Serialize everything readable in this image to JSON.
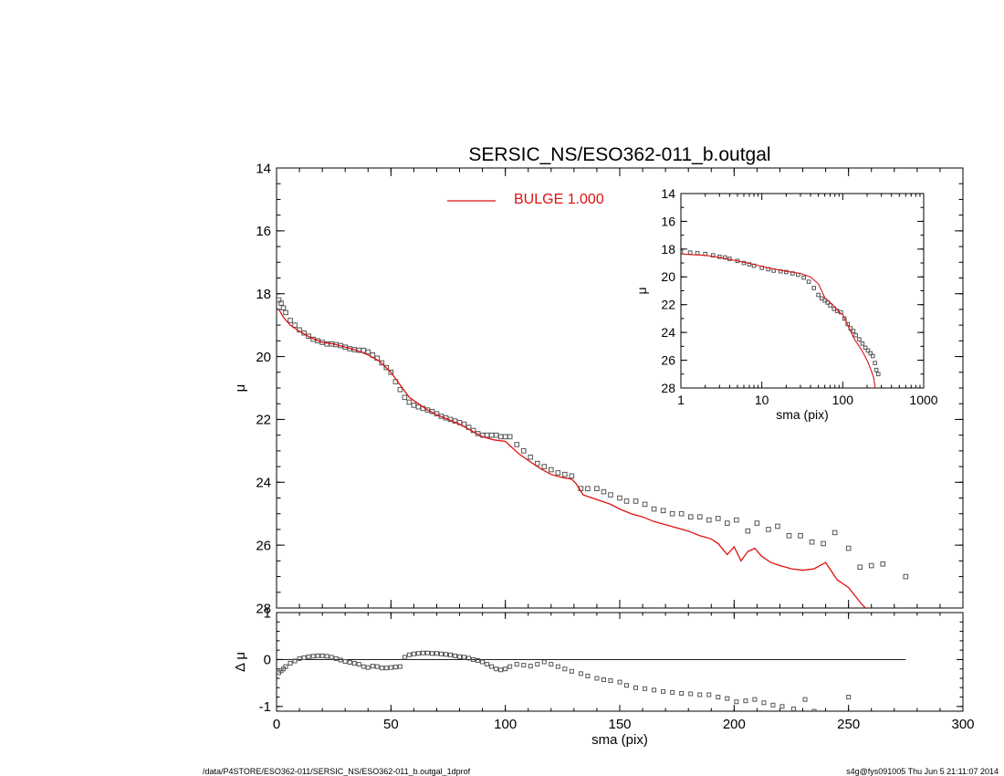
{
  "title": "SERSIC_NS/ESO362-011_b.outgal",
  "footer": {
    "left": "/data/P4STORE/ESO362-011/SERSIC_NS/ESO362-011_b.outgal_1dprof",
    "right": "s4g@fys091005  Thu Jun  5 21:11:07 2014"
  },
  "colors": {
    "model": "#dd1111",
    "data": "#555555",
    "axes": "#000000"
  },
  "chart_data": [
    {
      "type": "scatter",
      "panel": "main",
      "xlabel": "",
      "ylabel": "μ",
      "xlim": [
        0,
        300
      ],
      "ylim": [
        28,
        14
      ],
      "y_inverted": true,
      "yticks": [
        14,
        16,
        18,
        20,
        22,
        24,
        26,
        28
      ],
      "legend": {
        "label": "BULGE  1.000",
        "placement": "top-center"
      },
      "series": [
        {
          "marker": "open-square",
          "x": [
            1,
            2,
            3,
            4,
            6,
            8,
            10,
            12,
            14,
            16,
            18,
            20,
            22,
            24,
            26,
            28,
            30,
            32,
            34,
            36,
            38,
            40,
            42,
            44,
            46,
            48,
            50,
            52,
            54,
            56,
            58,
            60,
            62,
            64,
            66,
            68,
            70,
            72,
            74,
            76,
            78,
            80,
            82,
            84,
            86,
            88,
            90,
            92,
            94,
            96,
            98,
            100,
            102,
            105,
            108,
            111,
            114,
            117,
            120,
            123,
            126,
            129,
            133,
            136,
            140,
            143,
            146,
            150,
            153,
            157,
            161,
            165,
            169,
            173,
            177,
            181,
            185,
            189,
            193,
            197,
            201,
            206,
            210,
            215,
            219,
            224,
            229,
            234,
            239,
            244,
            250,
            255,
            260,
            265,
            275
          ],
          "y": [
            18.2,
            18.3,
            18.45,
            18.6,
            18.85,
            19.0,
            19.15,
            19.25,
            19.35,
            19.45,
            19.5,
            19.55,
            19.6,
            19.6,
            19.62,
            19.65,
            19.7,
            19.75,
            19.78,
            19.8,
            19.8,
            19.85,
            19.95,
            20.05,
            20.2,
            20.35,
            20.5,
            20.8,
            21.05,
            21.3,
            21.45,
            21.55,
            21.6,
            21.65,
            21.7,
            21.75,
            21.82,
            21.9,
            21.95,
            22.0,
            22.05,
            22.1,
            22.15,
            22.25,
            22.35,
            22.45,
            22.5,
            22.5,
            22.5,
            22.5,
            22.55,
            22.55,
            22.55,
            22.8,
            23.0,
            23.2,
            23.4,
            23.5,
            23.6,
            23.7,
            23.75,
            23.8,
            24.2,
            24.2,
            24.2,
            24.3,
            24.4,
            24.5,
            24.6,
            24.6,
            24.7,
            24.85,
            24.9,
            25.0,
            25.0,
            25.1,
            25.1,
            25.2,
            25.15,
            25.3,
            25.2,
            25.55,
            25.3,
            25.5,
            25.4,
            25.7,
            25.7,
            25.9,
            25.95,
            25.6,
            26.1,
            26.7,
            26.65,
            26.6,
            27.0
          ]
        },
        {
          "name": "BULGE  1.000",
          "line": true,
          "x": [
            1,
            3,
            6,
            10,
            15,
            20,
            25,
            30,
            35,
            40,
            45,
            50,
            54,
            58,
            62,
            66,
            70,
            75,
            80,
            85,
            90,
            95,
            100,
            103,
            106,
            110,
            115,
            120,
            125,
            129,
            131,
            134,
            138,
            142,
            146,
            150,
            155,
            160,
            165,
            170,
            175,
            180,
            185,
            190,
            193,
            197,
            200,
            203,
            206,
            209,
            212,
            216,
            220,
            225,
            230,
            235,
            240,
            245,
            250,
            256,
            262
          ],
          "y": [
            18.5,
            18.75,
            19.0,
            19.2,
            19.4,
            19.55,
            19.6,
            19.7,
            19.8,
            19.95,
            20.15,
            20.5,
            20.9,
            21.3,
            21.5,
            21.7,
            21.85,
            22.0,
            22.15,
            22.35,
            22.55,
            22.65,
            22.7,
            22.9,
            23.1,
            23.3,
            23.55,
            23.75,
            23.85,
            23.9,
            24.05,
            24.4,
            24.5,
            24.6,
            24.7,
            24.85,
            25.0,
            25.1,
            25.25,
            25.35,
            25.45,
            25.55,
            25.7,
            25.8,
            25.95,
            26.3,
            26.05,
            26.5,
            26.2,
            26.1,
            26.35,
            26.55,
            26.65,
            26.75,
            26.8,
            26.75,
            26.55,
            27.1,
            27.35,
            27.9,
            28.3
          ]
        }
      ]
    },
    {
      "type": "scatter",
      "panel": "residual",
      "xlabel": "sma (pix)",
      "ylabel": "Δ μ",
      "xlim": [
        0,
        300
      ],
      "ylim": [
        -1.1,
        1.0
      ],
      "xticks": [
        0,
        50,
        100,
        150,
        200,
        250,
        300
      ],
      "yticks": [
        -1,
        0,
        1
      ],
      "zero_line_xmax": 275,
      "series": [
        {
          "marker": "open-square",
          "x": [
            1,
            2,
            3,
            4,
            6,
            8,
            10,
            12,
            14,
            16,
            18,
            20,
            22,
            24,
            26,
            28,
            30,
            32,
            34,
            36,
            38,
            40,
            42,
            44,
            46,
            48,
            50,
            52,
            54,
            56,
            58,
            60,
            62,
            64,
            66,
            68,
            70,
            72,
            74,
            76,
            78,
            80,
            82,
            84,
            86,
            88,
            90,
            92,
            94,
            96,
            98,
            100,
            102,
            105,
            108,
            111,
            114,
            117,
            120,
            123,
            126,
            129,
            133,
            136,
            140,
            143,
            146,
            150,
            153,
            157,
            161,
            165,
            169,
            173,
            177,
            181,
            185,
            189,
            193,
            197,
            201,
            205,
            209,
            213,
            217,
            221,
            226,
            231,
            235,
            240,
            250
          ],
          "y": [
            -0.28,
            -0.24,
            -0.2,
            -0.15,
            -0.08,
            -0.03,
            0.02,
            0.04,
            0.06,
            0.07,
            0.08,
            0.08,
            0.07,
            0.05,
            0.02,
            -0.01,
            -0.04,
            -0.06,
            -0.08,
            -0.1,
            -0.15,
            -0.17,
            -0.14,
            -0.15,
            -0.18,
            -0.18,
            -0.17,
            -0.16,
            -0.15,
            0.05,
            0.1,
            0.12,
            0.13,
            0.14,
            0.14,
            0.13,
            0.13,
            0.12,
            0.11,
            0.1,
            0.08,
            0.06,
            0.05,
            0.03,
            0.0,
            -0.02,
            -0.05,
            -0.1,
            -0.15,
            -0.2,
            -0.22,
            -0.2,
            -0.15,
            -0.1,
            -0.12,
            -0.14,
            -0.1,
            -0.05,
            -0.1,
            -0.15,
            -0.2,
            -0.25,
            -0.3,
            -0.35,
            -0.4,
            -0.43,
            -0.45,
            -0.48,
            -0.55,
            -0.6,
            -0.62,
            -0.65,
            -0.68,
            -0.7,
            -0.72,
            -0.73,
            -0.75,
            -0.75,
            -0.8,
            -0.83,
            -0.9,
            -0.88,
            -0.85,
            -0.92,
            -0.97,
            -1.0,
            -1.05,
            -0.85,
            -1.1,
            -1.15,
            -0.8
          ]
        }
      ]
    },
    {
      "type": "scatter",
      "panel": "inset",
      "xlabel": "sma (pix)",
      "ylabel": "μ",
      "x_scale": "log",
      "xlim": [
        1,
        1000
      ],
      "ylim": [
        28,
        14
      ],
      "y_inverted": true,
      "xticks": [
        1,
        10,
        100,
        1000
      ],
      "yticks": [
        14,
        16,
        18,
        20,
        22,
        24,
        26,
        28
      ],
      "series": [
        {
          "marker": "open-square",
          "x": [
            1,
            1.3,
            1.6,
            2,
            2.5,
            3,
            3.5,
            4,
            5,
            6,
            7,
            8,
            10,
            12,
            14,
            17,
            20,
            24,
            28,
            33,
            38,
            44,
            50,
            55,
            60,
            65,
            70,
            78,
            85,
            95,
            105,
            115,
            125,
            135,
            145,
            160,
            175,
            190,
            205,
            220,
            235,
            250,
            260,
            275
          ],
          "y": [
            18.2,
            18.25,
            18.3,
            18.35,
            18.45,
            18.55,
            18.6,
            18.7,
            18.85,
            19.0,
            19.1,
            19.2,
            19.35,
            19.45,
            19.55,
            19.6,
            19.65,
            19.75,
            19.85,
            20.05,
            20.35,
            20.8,
            21.3,
            21.55,
            21.7,
            21.85,
            22.05,
            22.3,
            22.45,
            22.55,
            23.0,
            23.4,
            23.7,
            23.9,
            24.2,
            24.5,
            24.8,
            25.1,
            25.3,
            25.5,
            25.7,
            26.2,
            26.7,
            27.0
          ]
        },
        {
          "line": true,
          "x": [
            1,
            2,
            3,
            5,
            8,
            12,
            20,
            30,
            40,
            50,
            60,
            70,
            80,
            90,
            100,
            120,
            140,
            160,
            180,
            200,
            220,
            240,
            260
          ],
          "y": [
            18.35,
            18.45,
            18.6,
            18.85,
            19.1,
            19.35,
            19.6,
            19.75,
            20.0,
            20.5,
            21.5,
            21.85,
            22.15,
            22.55,
            22.7,
            23.7,
            24.5,
            25.0,
            25.5,
            26.0,
            26.6,
            27.2,
            28.5
          ]
        }
      ]
    }
  ]
}
